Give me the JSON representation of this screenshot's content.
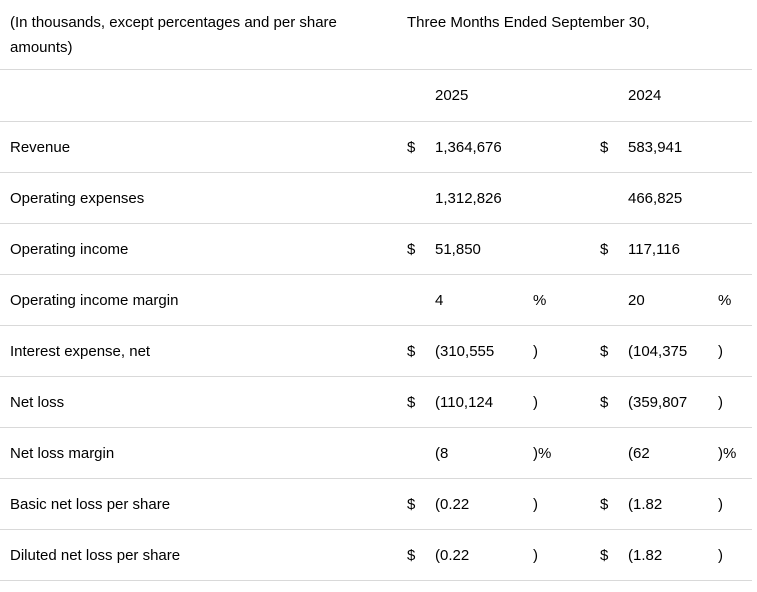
{
  "table": {
    "header": {
      "left_label": "(In thousands, except percentages and per share amounts)",
      "period_label": "Three Months Ended September 30,",
      "years": [
        "2025",
        "2024"
      ]
    },
    "rows": [
      {
        "label": "Revenue",
        "d1": "$",
        "v1": "1,364,676",
        "s1": "",
        "d2": "$",
        "v2": "583,941",
        "s2": ""
      },
      {
        "label": "Operating expenses",
        "d1": "",
        "v1": "1,312,826",
        "s1": "",
        "d2": "",
        "v2": "466,825",
        "s2": ""
      },
      {
        "label": "Operating income",
        "d1": "$",
        "v1": "51,850",
        "s1": "",
        "d2": "$",
        "v2": "117,116",
        "s2": ""
      },
      {
        "label": "Operating income margin",
        "d1": "",
        "v1": "4",
        "s1": "%",
        "d2": "",
        "v2": "20",
        "s2": "%"
      },
      {
        "label": "Interest expense, net",
        "d1": "$",
        "v1": "(310,555",
        "s1": ")",
        "d2": "$",
        "v2": "(104,375",
        "s2": ")"
      },
      {
        "label": "Net loss",
        "d1": "$",
        "v1": "(110,124",
        "s1": ")",
        "d2": "$",
        "v2": "(359,807",
        "s2": ")"
      },
      {
        "label": "Net loss margin",
        "d1": "",
        "v1": "(8",
        "s1": ")%",
        "d2": "",
        "v2": "(62",
        "s2": ")%"
      },
      {
        "label": "Basic net loss per share",
        "d1": "$",
        "v1": "(0.22",
        "s1": ")",
        "d2": "$",
        "v2": "(1.82",
        "s2": ")"
      },
      {
        "label": "Diluted net loss per share",
        "d1": "$",
        "v1": "(0.22",
        "s1": ")",
        "d2": "$",
        "v2": "(1.82",
        "s2": ")"
      }
    ],
    "colors": {
      "text": "#000000",
      "divider": "#d9d9d9",
      "background": "#ffffff"
    }
  }
}
